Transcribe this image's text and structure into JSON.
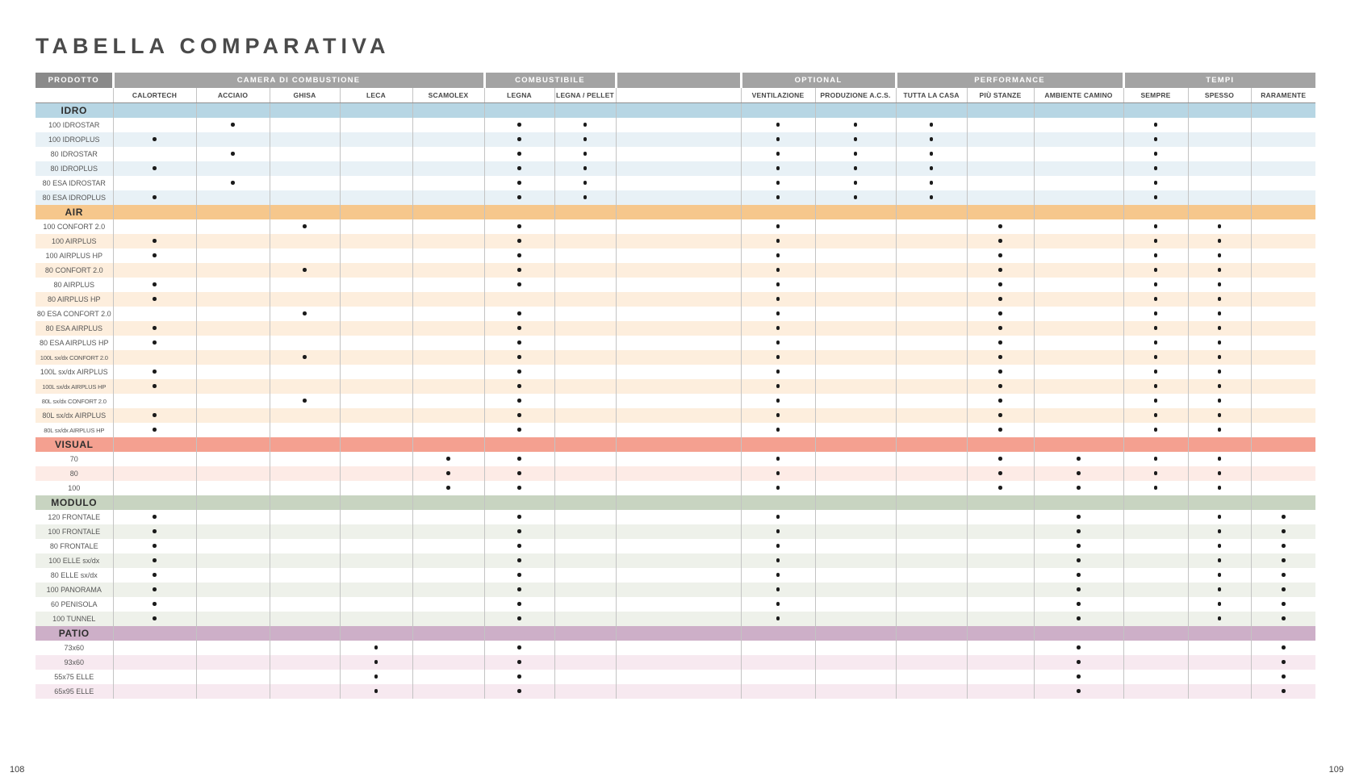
{
  "page": {
    "title": "TABELLA COMPARATIVA",
    "page_number_left": "108",
    "page_number_right": "109"
  },
  "colors": {
    "product_header_bg": "#8a8a8a",
    "group_header_bg": "#a3a3a3",
    "header_text": "#ffffff",
    "subheader_text": "#474747",
    "grid_line": "#c3c3c3",
    "dot": "#1b1b1b"
  },
  "table": {
    "product_header": "PRODOTTO",
    "groups": [
      {
        "label": "CAMERA DI COMBUSTIONE",
        "span": 5
      },
      {
        "label": "COMBUSTIBILE",
        "span": 2
      },
      {
        "label": "",
        "span": 1
      },
      {
        "label": "OPTIONAL",
        "span": 2
      },
      {
        "label": "PERFORMANCE",
        "span": 3
      },
      {
        "label": "TEMPI",
        "span": 3
      }
    ],
    "columns": [
      {
        "key": "calortech",
        "label": "CALORTECH"
      },
      {
        "key": "acciaio",
        "label": "ACCIAIO"
      },
      {
        "key": "ghisa",
        "label": "GHISA"
      },
      {
        "key": "leca",
        "label": "LECA"
      },
      {
        "key": "scamolex",
        "label": "SCAMOLEX"
      },
      {
        "key": "legna",
        "label": "LEGNA"
      },
      {
        "key": "legna_pellet",
        "label": "LEGNA / PELLET"
      },
      {
        "key": "spacer",
        "label": ""
      },
      {
        "key": "ventilazione",
        "label": "VENTILAZIONE"
      },
      {
        "key": "produzione_acs",
        "label": "PRODUZIONE A.C.S."
      },
      {
        "key": "tutta_la_casa",
        "label": "TUTTA LA CASA"
      },
      {
        "key": "piu_stanze",
        "label": "PIÙ STANZE"
      },
      {
        "key": "ambiente_camino",
        "label": "AMBIENTE CAMINO"
      },
      {
        "key": "sempre",
        "label": "SEMPRE"
      },
      {
        "key": "spesso",
        "label": "SPESSO"
      },
      {
        "key": "raramente",
        "label": "RARAMENTE"
      }
    ],
    "sections": [
      {
        "name": "IDRO",
        "band_color": "#b7d6e4",
        "stripe_color": "#e8f1f6",
        "rows": [
          {
            "label": "100 IDROSTAR",
            "dots": [
              "acciaio",
              "legna",
              "legna_pellet",
              "ventilazione",
              "produzione_acs",
              "tutta_la_casa",
              "sempre"
            ]
          },
          {
            "label": "100 IDROPLUS",
            "dots": [
              "calortech",
              "legna",
              "legna_pellet",
              "ventilazione",
              "produzione_acs",
              "tutta_la_casa",
              "sempre"
            ]
          },
          {
            "label": "80 IDROSTAR",
            "dots": [
              "acciaio",
              "legna",
              "legna_pellet",
              "ventilazione",
              "produzione_acs",
              "tutta_la_casa",
              "sempre"
            ]
          },
          {
            "label": "80 IDROPLUS",
            "dots": [
              "calortech",
              "legna",
              "legna_pellet",
              "ventilazione",
              "produzione_acs",
              "tutta_la_casa",
              "sempre"
            ]
          },
          {
            "label": "80 ESA IDROSTAR",
            "dots": [
              "acciaio",
              "legna",
              "legna_pellet",
              "ventilazione",
              "produzione_acs",
              "tutta_la_casa",
              "sempre"
            ]
          },
          {
            "label": "80 ESA IDROPLUS",
            "dots": [
              "calortech",
              "legna",
              "legna_pellet",
              "ventilazione",
              "produzione_acs",
              "tutta_la_casa",
              "sempre"
            ]
          }
        ]
      },
      {
        "name": "AIR",
        "band_color": "#f6c78c",
        "stripe_color": "#fdeedd",
        "rows": [
          {
            "label": "100 CONFORT 2.0",
            "dots": [
              "ghisa",
              "legna",
              "ventilazione",
              "piu_stanze",
              "sempre",
              "spesso"
            ]
          },
          {
            "label": "100 AIRPLUS",
            "dots": [
              "calortech",
              "legna",
              "ventilazione",
              "piu_stanze",
              "sempre",
              "spesso"
            ]
          },
          {
            "label": "100 AIRPLUS HP",
            "dots": [
              "calortech",
              "legna",
              "ventilazione",
              "piu_stanze",
              "sempre",
              "spesso"
            ]
          },
          {
            "label": "80 CONFORT 2.0",
            "dots": [
              "ghisa",
              "legna",
              "ventilazione",
              "piu_stanze",
              "sempre",
              "spesso"
            ]
          },
          {
            "label": "80 AIRPLUS",
            "dots": [
              "calortech",
              "legna",
              "ventilazione",
              "piu_stanze",
              "sempre",
              "spesso"
            ]
          },
          {
            "label": "80 AIRPLUS HP",
            "dots": [
              "calortech",
              "ventilazione",
              "piu_stanze",
              "sempre",
              "spesso"
            ]
          },
          {
            "label": "80 ESA CONFORT 2.0",
            "dots": [
              "ghisa",
              "legna",
              "ventilazione",
              "piu_stanze",
              "sempre",
              "spesso"
            ]
          },
          {
            "label": "80 ESA AIRPLUS",
            "dots": [
              "calortech",
              "legna",
              "ventilazione",
              "piu_stanze",
              "sempre",
              "spesso"
            ]
          },
          {
            "label": "80 ESA AIRPLUS HP",
            "dots": [
              "calortech",
              "legna",
              "ventilazione",
              "piu_stanze",
              "sempre",
              "spesso"
            ]
          },
          {
            "label": "100L sx/dx CONFORT 2.0",
            "dots": [
              "ghisa",
              "legna",
              "ventilazione",
              "piu_stanze",
              "sempre",
              "spesso"
            ]
          },
          {
            "label": "100L sx/dx AIRPLUS",
            "dots": [
              "calortech",
              "legna",
              "ventilazione",
              "piu_stanze",
              "sempre",
              "spesso"
            ]
          },
          {
            "label": "100L sx/dx AIRPLUS HP",
            "dots": [
              "calortech",
              "legna",
              "ventilazione",
              "piu_stanze",
              "sempre",
              "spesso"
            ]
          },
          {
            "label": "80L sx/dx CONFORT 2.0",
            "dots": [
              "ghisa",
              "legna",
              "ventilazione",
              "piu_stanze",
              "sempre",
              "spesso"
            ]
          },
          {
            "label": "80L sx/dx AIRPLUS",
            "dots": [
              "calortech",
              "legna",
              "ventilazione",
              "piu_stanze",
              "sempre",
              "spesso"
            ]
          },
          {
            "label": "80L sx/dx AIRPLUS HP",
            "dots": [
              "calortech",
              "legna",
              "ventilazione",
              "piu_stanze",
              "sempre",
              "spesso"
            ]
          }
        ]
      },
      {
        "name": "VISUAL",
        "band_color": "#f4a090",
        "stripe_color": "#fdebe6",
        "rows": [
          {
            "label": "70",
            "dots": [
              "scamolex",
              "legna",
              "ventilazione",
              "piu_stanze",
              "ambiente_camino",
              "sempre",
              "spesso"
            ]
          },
          {
            "label": "80",
            "dots": [
              "scamolex",
              "legna",
              "ventilazione",
              "piu_stanze",
              "ambiente_camino",
              "sempre",
              "spesso"
            ]
          },
          {
            "label": "100",
            "dots": [
              "scamolex",
              "legna",
              "ventilazione",
              "piu_stanze",
              "ambiente_camino",
              "sempre",
              "spesso"
            ]
          }
        ]
      },
      {
        "name": "MODULO",
        "band_color": "#c8d4c1",
        "stripe_color": "#eef1ea",
        "rows": [
          {
            "label": "120 FRONTALE",
            "dots": [
              "calortech",
              "legna",
              "ventilazione",
              "ambiente_camino",
              "spesso",
              "raramente"
            ]
          },
          {
            "label": "100 FRONTALE",
            "dots": [
              "calortech",
              "legna",
              "ventilazione",
              "ambiente_camino",
              "spesso",
              "raramente"
            ]
          },
          {
            "label": "80 FRONTALE",
            "dots": [
              "calortech",
              "legna",
              "ventilazione",
              "ambiente_camino",
              "spesso",
              "raramente"
            ]
          },
          {
            "label": "100 ELLE sx/dx",
            "dots": [
              "calortech",
              "legna",
              "ventilazione",
              "ambiente_camino",
              "spesso",
              "raramente"
            ]
          },
          {
            "label": "80 ELLE sx/dx",
            "dots": [
              "calortech",
              "legna",
              "ventilazione",
              "ambiente_camino",
              "spesso",
              "raramente"
            ]
          },
          {
            "label": "100 PANORAMA",
            "dots": [
              "calortech",
              "legna",
              "ventilazione",
              "ambiente_camino",
              "spesso",
              "raramente"
            ]
          },
          {
            "label": "60 PENISOLA",
            "dots": [
              "calortech",
              "legna",
              "ventilazione",
              "ambiente_camino",
              "spesso",
              "raramente"
            ]
          },
          {
            "label": "100 TUNNEL",
            "dots": [
              "calortech",
              "legna",
              "ventilazione",
              "ambiente_camino",
              "spesso",
              "raramente"
            ]
          }
        ]
      },
      {
        "name": "PATIO",
        "band_color": "#cdafc8",
        "stripe_color": "#f7e9f0",
        "rows": [
          {
            "label": "73x60",
            "dots": [
              "leca",
              "legna",
              "ambiente_camino",
              "raramente"
            ]
          },
          {
            "label": "93x60",
            "dots": [
              "leca",
              "legna",
              "ambiente_camino",
              "raramente"
            ]
          },
          {
            "label": "55x75 ELLE",
            "dots": [
              "leca",
              "legna",
              "ambiente_camino",
              "raramente"
            ]
          },
          {
            "label": "65x95 ELLE",
            "dots": [
              "leca",
              "legna",
              "ambiente_camino",
              "raramente"
            ]
          }
        ]
      }
    ]
  }
}
